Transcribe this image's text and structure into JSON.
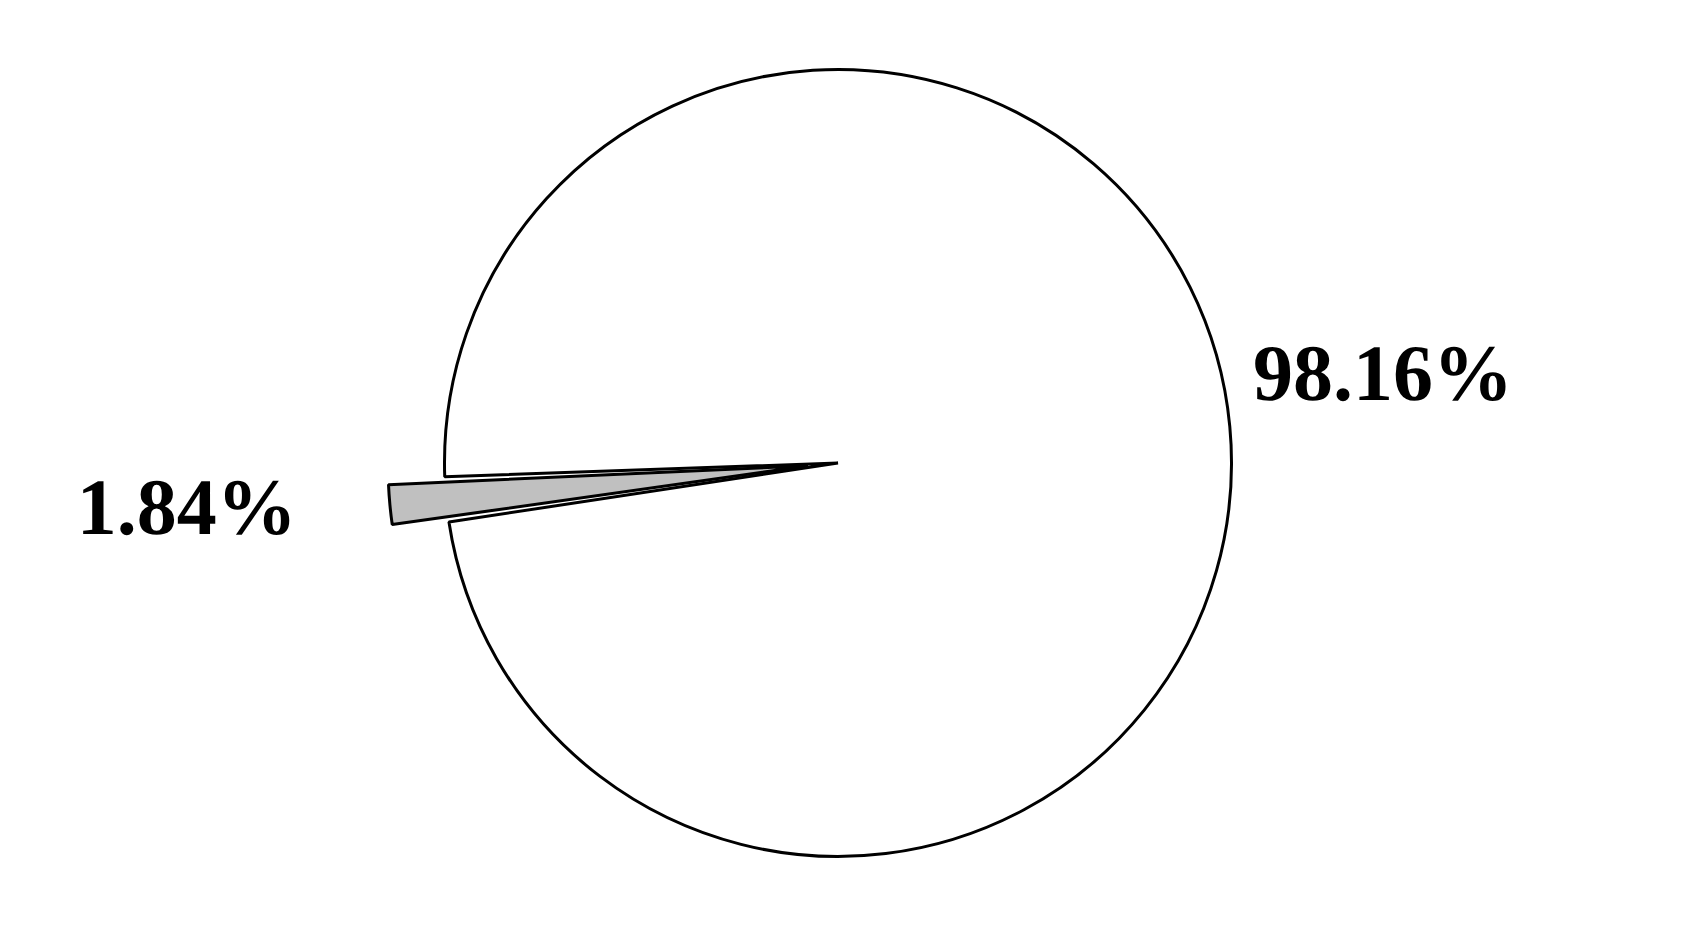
{
  "chart_data": {
    "type": "pie",
    "categories": [
      null,
      null
    ],
    "values": [
      98.16,
      1.84
    ],
    "colors": [
      "#ffffff",
      "#c0c0c0"
    ],
    "value_labels": [
      "98.16%",
      "1.84%"
    ],
    "legend": false
  }
}
